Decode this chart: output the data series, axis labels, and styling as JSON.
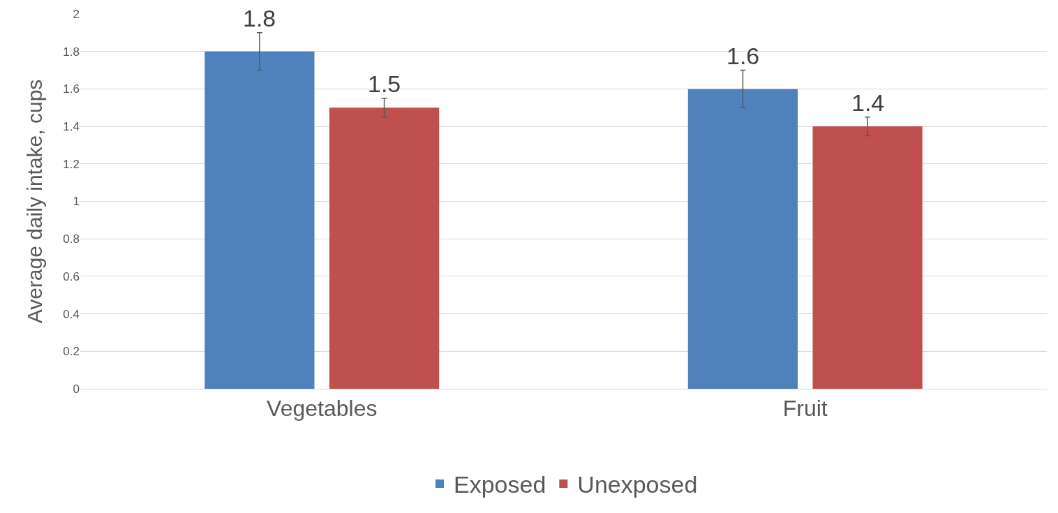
{
  "chart_data": {
    "type": "bar",
    "ylabel": "Average daily intake, cups",
    "categories": [
      "Vegetables",
      "Fruit"
    ],
    "series": [
      {
        "name": "Exposed",
        "color": "#4f81bd",
        "values": [
          1.8,
          1.6
        ],
        "errors": [
          0.1,
          0.1
        ]
      },
      {
        "name": "Unexposed",
        "color": "#c0504d",
        "values": [
          1.5,
          1.4
        ],
        "errors": [
          0.05,
          0.05
        ]
      }
    ],
    "ylim": [
      0,
      2
    ],
    "yticks": [
      0,
      0.2,
      0.4,
      0.6,
      0.8,
      1,
      1.2,
      1.4,
      1.6,
      1.8,
      2
    ],
    "grid": "y",
    "legend": "bottom",
    "data_labels": true
  }
}
